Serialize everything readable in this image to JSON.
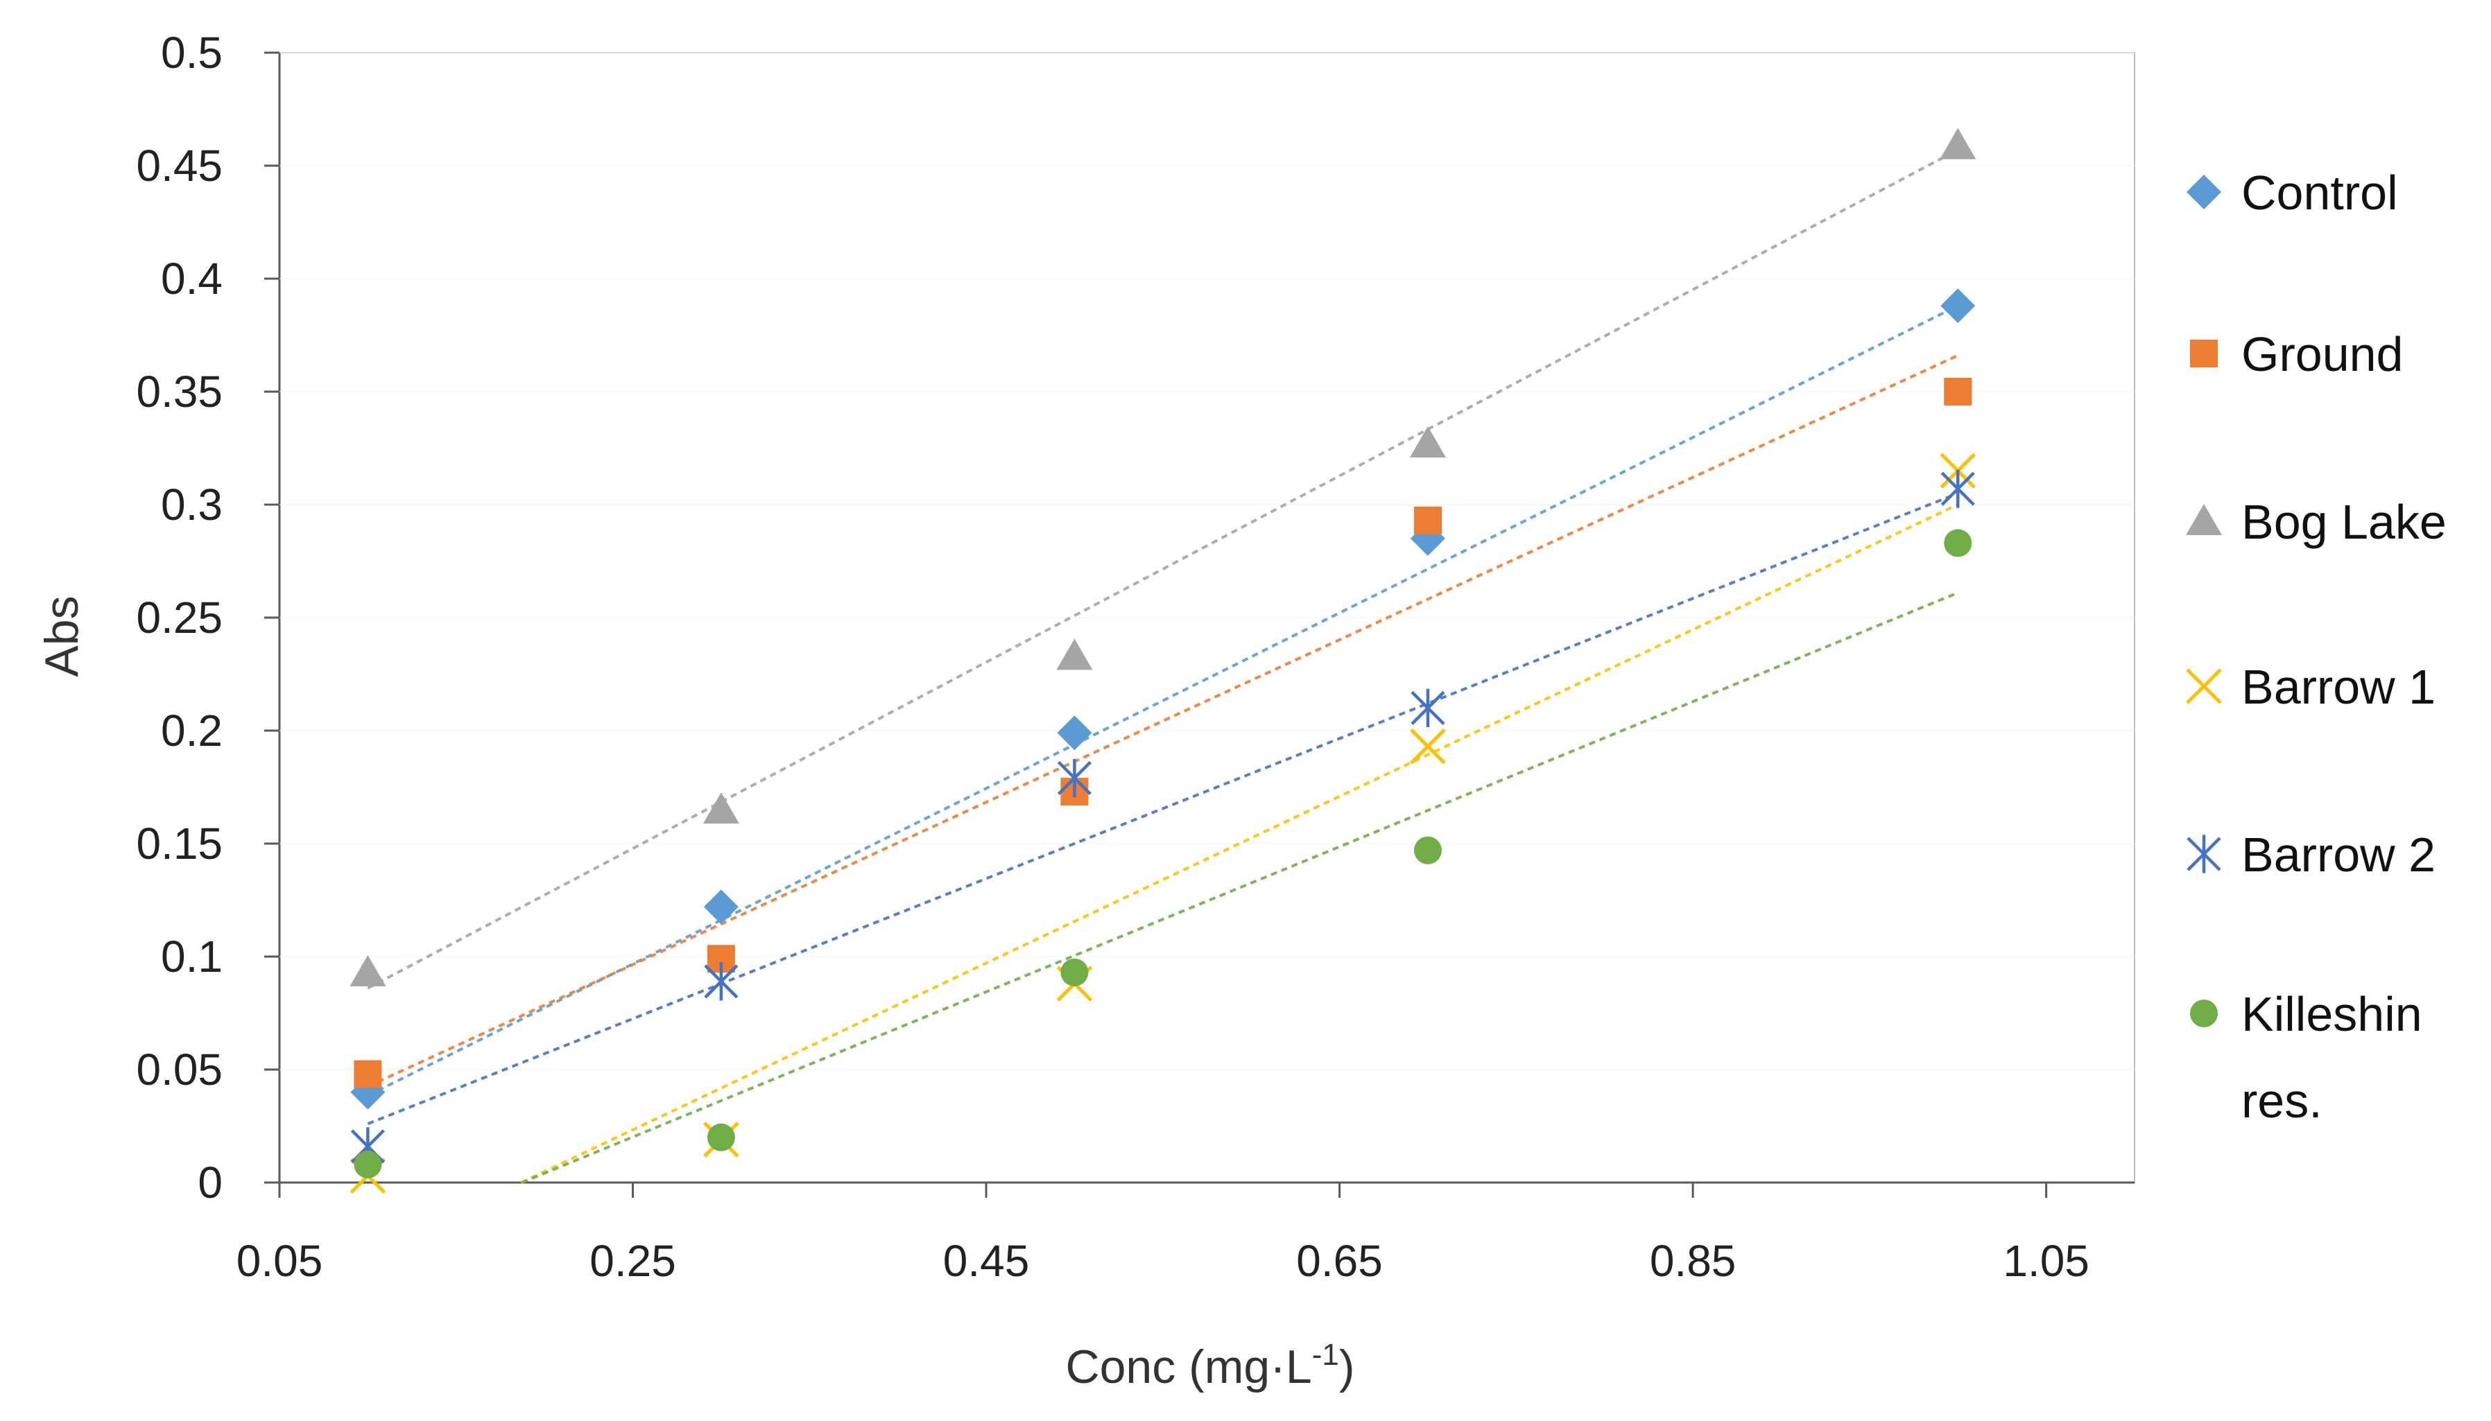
{
  "chart_data": {
    "type": "scatter",
    "xlabel": "Conc (mg·L",
    "xlabel_sup": "-1",
    "xlabel_end": ")",
    "ylabel": "Abs",
    "xlim": [
      0.05,
      1.1
    ],
    "ylim": [
      0,
      0.5
    ],
    "x_ticks": [
      0.05,
      0.25,
      0.45,
      0.65,
      0.85,
      1.05
    ],
    "y_ticks": [
      0,
      0.05,
      0.1,
      0.15,
      0.2,
      0.25,
      0.3,
      0.35,
      0.4,
      0.45,
      0.5
    ],
    "x_tick_labels": [
      "0.05",
      "0.25",
      "0.45",
      "0.65",
      "0.85",
      "1.05"
    ],
    "y_tick_labels": [
      "0",
      "0.05",
      "0.1",
      "0.15",
      "0.2",
      "0.25",
      "0.3",
      "0.35",
      "0.4",
      "0.45",
      "0.5"
    ],
    "x": [
      0.1,
      0.3,
      0.5,
      0.7,
      1.0
    ],
    "legend_position": "right",
    "trendlines": "linear, dashed",
    "series": [
      {
        "name": "Control",
        "label_lines": [
          "Control"
        ],
        "marker": "diamond",
        "color": "#5B9BD5",
        "values": [
          0.04,
          0.122,
          0.199,
          0.285,
          0.388
        ],
        "trend": [
          0.0385,
          0.388
        ]
      },
      {
        "name": "Ground",
        "label_lines": [
          "Ground"
        ],
        "marker": "square",
        "color": "#ED7D31",
        "values": [
          0.048,
          0.099,
          0.173,
          0.293,
          0.35
        ],
        "trend": [
          0.0425,
          0.366
        ]
      },
      {
        "name": "Bog Lake",
        "label_lines": [
          "Bog Lake"
        ],
        "marker": "triangle",
        "color": "#A5A5A5",
        "values": [
          0.093,
          0.165,
          0.233,
          0.327,
          0.459
        ],
        "trend": [
          0.086,
          0.457
        ]
      },
      {
        "name": "Barrow 1",
        "label_lines": [
          "Barrow 1"
        ],
        "marker": "x",
        "color": "#FFC000",
        "values": [
          0.003,
          0.019,
          0.088,
          0.193,
          0.315
        ],
        "trend": [
          -0.032,
          0.3
        ]
      },
      {
        "name": "Barrow 2",
        "label_lines": [
          "Barrow 2"
        ],
        "marker": "asterisk",
        "color": "#4472C4",
        "values": [
          0.016,
          0.089,
          0.179,
          0.21,
          0.307
        ],
        "trend": [
          0.026,
          0.305
        ]
      },
      {
        "name": "Killeshin res.",
        "label_lines": [
          "Killeshin",
          "res."
        ],
        "marker": "circle",
        "color": "#70AD47",
        "values": [
          0.008,
          0.02,
          0.093,
          0.147,
          0.283
        ],
        "trend": [
          -0.028,
          0.261
        ]
      }
    ]
  }
}
